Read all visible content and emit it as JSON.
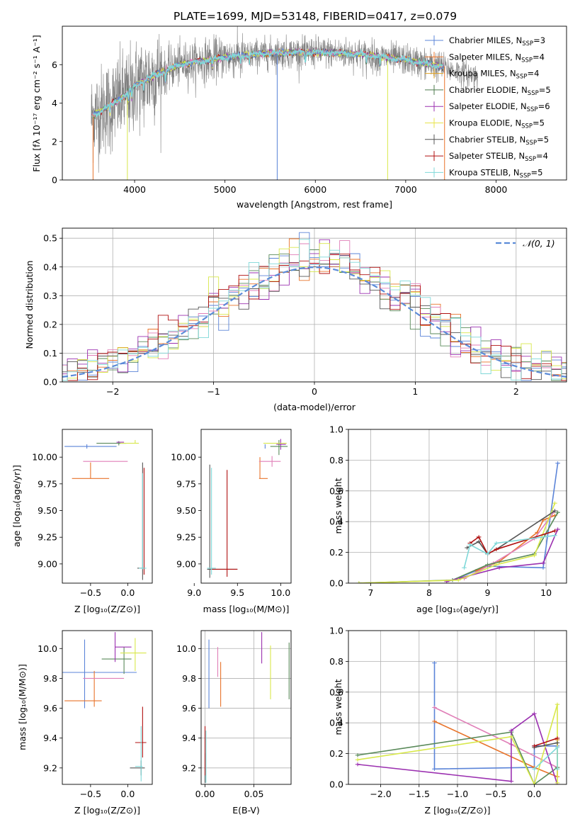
{
  "figure": {
    "title": "PLATE=1699, MJD=53148, FIBERID=0417, z=0.079"
  },
  "legend_entries": [
    {
      "label": "Chabrier MILES, N",
      "sub": "SSP",
      "tail": "=3",
      "color": "#5b84d8"
    },
    {
      "label": "Salpeter MILES, N",
      "sub": "SSP",
      "tail": "=4",
      "color": "#e8732a"
    },
    {
      "label": "Kroupa MILES, N",
      "sub": "SSP",
      "tail": "=4",
      "color": "#e0a020"
    },
    {
      "label": "Chabrier ELODIE, N",
      "sub": "SSP",
      "tail": "=5",
      "color": "#4c7a4c"
    },
    {
      "label": "Salpeter ELODIE, N",
      "sub": "SSP",
      "tail": "=6",
      "color": "#9b30b0"
    },
    {
      "label": "Kroupa ELODIE, N",
      "sub": "SSP",
      "tail": "=5",
      "color": "#e8e34a"
    },
    {
      "label": "Chabrier STELIB, N",
      "sub": "SSP",
      "tail": "=5",
      "color": "#555555"
    },
    {
      "label": "Salpeter STELIB, N",
      "sub": "SSP",
      "tail": "=4",
      "color": "#b01010"
    },
    {
      "label": "Kroupa STELIB, N",
      "sub": "SSP",
      "tail": "=5",
      "color": "#7fd8d8"
    }
  ],
  "colors": {
    "m0": "#5b84d8",
    "m1": "#e8732a",
    "m2": "#e07fb8",
    "m3": "#5a8a5a",
    "m4": "#9b30b0",
    "m5": "#d8e84a",
    "m6": "#555555",
    "m7": "#b01010",
    "m8": "#7fd8d8",
    "data": "#808080",
    "gauss": "#5b8bd8",
    "grid": "#b0b0b0"
  },
  "chart_data": [
    {
      "id": "spectrum",
      "type": "line",
      "title": "PLATE=1699, MJD=53148, FIBERID=0417, z=0.079",
      "xlabel": "wavelength [Angstrom, rest frame]",
      "ylabel": "Flux [fλ 10⁻¹⁷ erg cm⁻² s⁻¹ A⁻¹]",
      "xlim": [
        3200,
        8780
      ],
      "ylim": [
        0,
        8
      ],
      "xticks": [
        4000,
        5000,
        6000,
        7000,
        8000
      ],
      "yticks": [
        0,
        2,
        4,
        6
      ],
      "grid": false,
      "legend_placement": "right",
      "continuum": [
        [
          3520,
          3.3
        ],
        [
          3700,
          3.8
        ],
        [
          3900,
          4.4
        ],
        [
          4000,
          4.9
        ],
        [
          4200,
          5.4
        ],
        [
          4500,
          6.0
        ],
        [
          5000,
          6.4
        ],
        [
          5500,
          6.6
        ],
        [
          6000,
          6.65
        ],
        [
          6500,
          6.55
        ],
        [
          7000,
          6.25
        ],
        [
          7400,
          5.9
        ],
        [
          7600,
          5.6
        ],
        [
          7800,
          5.4
        ]
      ]
    },
    {
      "id": "residuals",
      "type": "line",
      "xlabel": "(data-model)/error",
      "ylabel": "Normed distribution",
      "xlim": [
        -2.5,
        2.5
      ],
      "ylim": [
        0,
        0.535
      ],
      "xticks": [
        -2,
        -1,
        0,
        1,
        2
      ],
      "yticks": [
        0.0,
        0.1,
        0.2,
        0.3,
        0.4,
        0.5
      ],
      "grid": true,
      "legend": "𝒩(0, 1)",
      "legend_placement": "top-right"
    },
    {
      "id": "age_vs_Z",
      "type": "scatter",
      "xlabel": "Z [log₁₀(Z/Z⊙)]",
      "ylabel": "age  [log₁₀(age/yr)]",
      "xlim": [
        -0.88,
        0.33
      ],
      "ylim": [
        8.82,
        10.26
      ],
      "xticks": [
        -0.5,
        0.0
      ],
      "yticks": [
        9.0,
        9.25,
        9.5,
        9.75,
        10.0
      ],
      "grid": false
    },
    {
      "id": "age_vs_mass",
      "type": "scatter",
      "xlabel": "mass [log₁₀(M/M⊙)]",
      "ylabel": "",
      "xlim": [
        9.08,
        10.12
      ],
      "ylim": [
        8.82,
        10.26
      ],
      "xticks": [
        9.0,
        9.5,
        10.0
      ],
      "yticks": [
        9.0,
        9.25,
        9.5,
        9.75,
        10.0
      ],
      "grid": false
    },
    {
      "id": "massweight_vs_age",
      "type": "line",
      "xlabel": "age  [log₁₀(age/yr)]",
      "ylabel": "mass weight",
      "xlim": [
        6.62,
        10.35
      ],
      "ylim": [
        0,
        1.0
      ],
      "xticks": [
        7,
        8,
        9,
        10
      ],
      "yticks": [
        0.0,
        0.2,
        0.4,
        0.6,
        0.8,
        1.0
      ],
      "grid": true
    },
    {
      "id": "mass_vs_Z",
      "type": "scatter",
      "xlabel": "Z [log₁₀(Z/Z⊙)]",
      "ylabel": "mass [log₁₀(M/M⊙)]",
      "xlim": [
        -0.88,
        0.33
      ],
      "ylim": [
        9.09,
        10.12
      ],
      "xticks": [
        -0.5,
        0.0
      ],
      "yticks": [
        9.2,
        9.4,
        9.6,
        9.8,
        10.0
      ],
      "grid": false
    },
    {
      "id": "mass_vs_ebv",
      "type": "scatter",
      "xlabel": "E(B-V)",
      "ylabel": "",
      "xlim": [
        -0.004,
        0.088
      ],
      "ylim": [
        9.09,
        10.12
      ],
      "xticks": [
        0.0,
        0.05
      ],
      "yticks": [
        9.2,
        9.4,
        9.6,
        9.8,
        10.0
      ],
      "grid": true
    },
    {
      "id": "massweight_vs_Z",
      "type": "line",
      "xlabel": "Z [log₁₀(Z/Z⊙)]",
      "ylabel": "mass weight",
      "xlim": [
        -2.42,
        0.42
      ],
      "ylim": [
        0,
        1.0
      ],
      "xticks": [
        -2.0,
        -1.5,
        -1.0,
        -0.5,
        0.0
      ],
      "yticks": [
        0.0,
        0.2,
        0.4,
        0.6,
        0.8,
        1.0
      ],
      "grid": true
    }
  ]
}
